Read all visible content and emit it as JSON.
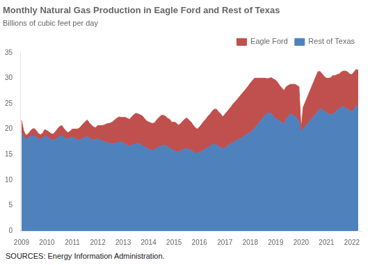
{
  "chart_data": {
    "type": "area",
    "title": "Monthly Natural Gas Production in Eagle Ford and Rest of Texas",
    "subtitle": "Billions of cubic feet per day",
    "source": "SOURCES: Energy Information Administration.",
    "stacked": true,
    "grid": false,
    "legend": "upper right",
    "xlim": [
      2008.95,
      2022.3833333333
    ],
    "xticks": [
      2009,
      2010,
      2011,
      2012,
      2013,
      2014,
      2015,
      2016,
      2017,
      2018,
      2019,
      2020,
      2021,
      2022
    ],
    "ylim": [
      0,
      35
    ],
    "yticks": [
      0,
      5,
      10,
      15,
      20,
      25,
      30,
      35
    ],
    "x": [
      2009,
      2009.0833333333,
      2009.1666666667,
      2009.25,
      2009.3333333333,
      2009.4166666667,
      2009.5,
      2009.5833333333,
      2009.6666666667,
      2009.75,
      2009.8333333333,
      2009.9166666667,
      2010,
      2010.0833333333,
      2010.1666666667,
      2010.25,
      2010.3333333333,
      2010.4166666667,
      2010.5,
      2010.5833333333,
      2010.6666666667,
      2010.75,
      2010.8333333333,
      2010.9166666667,
      2011,
      2011.0833333333,
      2011.1666666667,
      2011.25,
      2011.3333333333,
      2011.4166666667,
      2011.5,
      2011.5833333333,
      2011.6666666667,
      2011.75,
      2011.8333333333,
      2011.9166666667,
      2012,
      2012.0833333333,
      2012.1666666667,
      2012.25,
      2012.3333333333,
      2012.4166666667,
      2012.5,
      2012.5833333333,
      2012.6666666667,
      2012.75,
      2012.8333333333,
      2012.9166666667,
      2013,
      2013.0833333333,
      2013.1666666667,
      2013.25,
      2013.3333333333,
      2013.4166666667,
      2013.5,
      2013.5833333333,
      2013.6666666667,
      2013.75,
      2013.8333333333,
      2013.9166666667,
      2014,
      2014.0833333333,
      2014.1666666667,
      2014.25,
      2014.3333333333,
      2014.4166666667,
      2014.5,
      2014.5833333333,
      2014.6666666667,
      2014.75,
      2014.8333333333,
      2014.9166666667,
      2015,
      2015.0833333333,
      2015.1666666667,
      2015.25,
      2015.3333333333,
      2015.4166666667,
      2015.5,
      2015.5833333333,
      2015.6666666667,
      2015.75,
      2015.8333333333,
      2015.9166666667,
      2016,
      2016.0833333333,
      2016.1666666667,
      2016.25,
      2016.3333333333,
      2016.4166666667,
      2016.5,
      2016.5833333333,
      2016.6666666667,
      2016.75,
      2016.8333333333,
      2016.9166666667,
      2017,
      2017.0833333333,
      2017.1666666667,
      2017.25,
      2017.3333333333,
      2017.4166666667,
      2017.5,
      2017.5833333333,
      2017.6666666667,
      2017.75,
      2017.8333333333,
      2017.9166666667,
      2018,
      2018.0833333333,
      2018.1666666667,
      2018.25,
      2018.3333333333,
      2018.4166666667,
      2018.5,
      2018.5833333333,
      2018.6666666667,
      2018.75,
      2018.8333333333,
      2018.9166666667,
      2019,
      2019.0833333333,
      2019.1666666667,
      2019.25,
      2019.3333333333,
      2019.4166666667,
      2019.5,
      2019.5833333333,
      2019.6666666667,
      2019.75,
      2019.8333333333,
      2019.9166666667,
      2020,
      2020.0833333333,
      2020.1666666667,
      2020.25,
      2020.3333333333,
      2020.4166666667,
      2020.5,
      2020.5833333333,
      2020.6666666667,
      2020.75,
      2020.8333333333,
      2020.9166666667,
      2021,
      2021.0833333333,
      2021.1666666667,
      2021.25,
      2021.3333333333,
      2021.4166666667,
      2021.5,
      2021.5833333333,
      2021.6666666667,
      2021.75,
      2021.8333333333,
      2021.9166666667,
      2022,
      2022.0833333333,
      2022.1666666667,
      2022.25
    ],
    "series": [
      {
        "name": "Rest of Texas",
        "color": "#4F81BD",
        "values": [
          19.5,
          18.5,
          18.0,
          18.2,
          18.5,
          18.7,
          18.6,
          18.4,
          18.1,
          18.0,
          18.2,
          18.6,
          18.5,
          18.2,
          17.9,
          17.8,
          18.0,
          18.3,
          18.6,
          18.7,
          18.4,
          18.1,
          18.0,
          18.3,
          18.4,
          18.2,
          18.0,
          17.8,
          17.9,
          18.2,
          18.4,
          18.5,
          18.2,
          18.0,
          17.8,
          18.0,
          18.1,
          17.9,
          17.7,
          17.5,
          17.4,
          17.3,
          17.2,
          17.1,
          17.2,
          17.3,
          17.4,
          17.5,
          17.3,
          17.0,
          16.8,
          16.6,
          16.8,
          17.0,
          17.1,
          17.2,
          17.0,
          16.8,
          16.5,
          16.3,
          16.1,
          15.9,
          15.8,
          16.0,
          16.3,
          16.5,
          16.7,
          16.9,
          16.7,
          16.5,
          16.3,
          16.0,
          15.8,
          15.6,
          15.5,
          15.7,
          15.9,
          16.1,
          16.2,
          16.0,
          15.8,
          15.5,
          15.3,
          15.2,
          15.4,
          15.6,
          15.9,
          16.1,
          16.4,
          16.6,
          16.9,
          17.1,
          16.9,
          16.6,
          16.4,
          16.1,
          16.3,
          16.6,
          16.9,
          17.1,
          17.4,
          17.6,
          17.9,
          18.1,
          18.3,
          18.6,
          18.9,
          19.1,
          19.4,
          19.7,
          20.2,
          20.7,
          21.2,
          21.7,
          22.2,
          22.7,
          23.1,
          23.2,
          23.0,
          22.5,
          22.0,
          21.8,
          21.5,
          21.2,
          21.0,
          22.0,
          22.5,
          23.0,
          22.8,
          22.5,
          22.0,
          21.5,
          19.4,
          20.0,
          20.5,
          21.0,
          21.5,
          22.0,
          22.5,
          23.0,
          23.5,
          24.0,
          23.8,
          23.5,
          23.2,
          23.0,
          22.8,
          22.9,
          23.2,
          23.7,
          24.0,
          24.4,
          24.4,
          24.1,
          23.9,
          23.7,
          23.4,
          23.9,
          24.4,
          24.8
        ]
      },
      {
        "name": "Eagle Ford",
        "color": "#C0504D",
        "values": [
          2.2,
          1.2,
          0.8,
          0.8,
          1.0,
          1.3,
          1.5,
          1.3,
          1.0,
          0.9,
          1.0,
          1.3,
          1.2,
          1.2,
          1.2,
          1.2,
          1.5,
          1.7,
          1.9,
          2.0,
          1.7,
          1.5,
          1.3,
          1.3,
          1.6,
          1.8,
          2.0,
          2.3,
          2.6,
          2.8,
          3.0,
          3.3,
          3.0,
          2.8,
          2.6,
          2.3,
          2.6,
          2.8,
          3.0,
          3.3,
          3.6,
          3.8,
          4.0,
          4.3,
          4.6,
          4.8,
          5.0,
          4.8,
          5.0,
          5.3,
          5.3,
          5.3,
          5.6,
          5.8,
          6.0,
          5.8,
          5.8,
          5.8,
          5.6,
          5.3,
          5.3,
          5.3,
          5.3,
          5.3,
          5.6,
          5.8,
          6.0,
          5.8,
          5.8,
          5.6,
          5.6,
          5.3,
          5.6,
          5.6,
          5.3,
          5.3,
          5.6,
          5.8,
          6.0,
          5.8,
          5.6,
          5.3,
          5.0,
          4.8,
          5.0,
          5.3,
          5.6,
          5.8,
          6.1,
          6.3,
          6.6,
          6.8,
          7.0,
          6.8,
          6.6,
          6.3,
          6.6,
          6.8,
          7.0,
          7.3,
          7.6,
          7.8,
          8.0,
          8.3,
          8.6,
          8.8,
          9.0,
          9.3,
          9.6,
          9.8,
          9.8,
          9.3,
          8.8,
          8.3,
          7.8,
          7.3,
          6.8,
          6.8,
          7.1,
          7.3,
          7.6,
          7.3,
          7.0,
          6.8,
          6.6,
          6.3,
          6.1,
          5.8,
          6.0,
          6.3,
          6.6,
          6.8,
          0.4,
          4.3,
          4.8,
          5.3,
          5.8,
          6.3,
          6.8,
          7.3,
          7.8,
          7.3,
          7.0,
          6.8,
          6.8,
          7.0,
          7.3,
          7.6,
          7.3,
          7.0,
          6.8,
          6.8,
          7.0,
          7.3,
          7.3,
          7.1,
          7.3,
          7.3,
          7.3,
          6.8
        ]
      }
    ]
  }
}
